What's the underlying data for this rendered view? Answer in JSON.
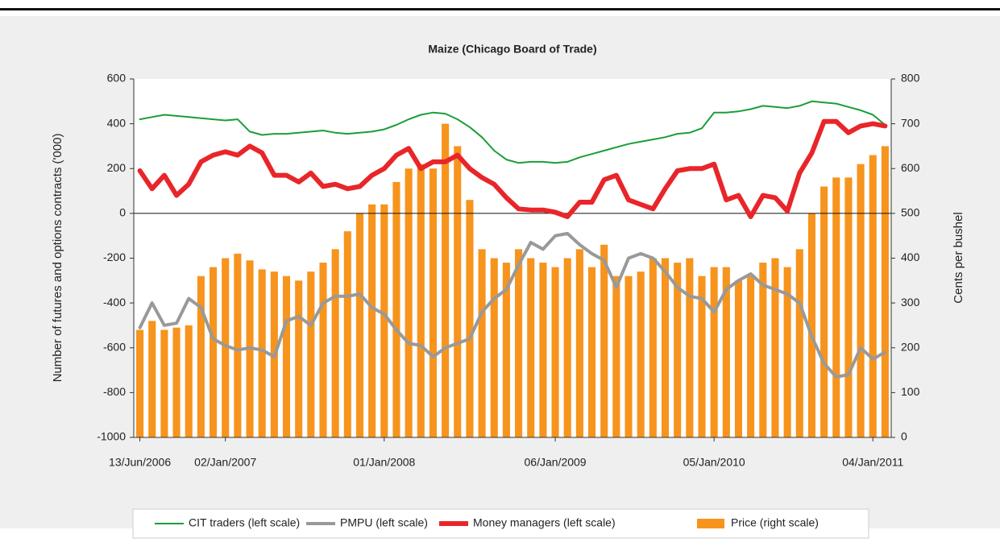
{
  "chart_data": {
    "type": "combo",
    "title": "Maize (Chicago Board of Trade)",
    "y_label": "Number of futures and options contracts ('000)",
    "y2_label": "Cents per bushel",
    "categories": [
      "13/Jun/2006",
      null,
      null,
      null,
      null,
      null,
      null,
      "02/Jan/2007",
      null,
      null,
      null,
      null,
      null,
      null,
      null,
      null,
      null,
      null,
      null,
      null,
      "01/Jan/2008",
      null,
      null,
      null,
      null,
      null,
      null,
      null,
      null,
      null,
      null,
      null,
      null,
      null,
      "06/Jan/2009",
      null,
      null,
      null,
      null,
      null,
      null,
      null,
      null,
      null,
      null,
      null,
      null,
      "05/Jan/2010",
      null,
      null,
      null,
      null,
      null,
      null,
      null,
      null,
      null,
      null,
      null,
      null,
      "04/Jan/2011",
      null
    ],
    "ylim": [
      -1000,
      600
    ],
    "yticks": [
      -1000,
      -800,
      -600,
      -400,
      -200,
      0,
      200,
      400,
      600
    ],
    "y2lim": [
      0,
      800
    ],
    "y2ticks": [
      0,
      100,
      200,
      300,
      400,
      500,
      600,
      700,
      800
    ],
    "legend": "bottom",
    "series": [
      {
        "name": "Price (right scale)",
        "type": "bar",
        "axis": "y2",
        "color": "#f7941d",
        "values": [
          240,
          260,
          240,
          245,
          250,
          360,
          380,
          400,
          410,
          395,
          375,
          370,
          360,
          350,
          370,
          390,
          420,
          460,
          500,
          520,
          520,
          570,
          600,
          610,
          600,
          700,
          650,
          530,
          420,
          400,
          390,
          420,
          400,
          390,
          380,
          400,
          420,
          380,
          430,
          360,
          360,
          370,
          400,
          400,
          390,
          400,
          360,
          380,
          380,
          350,
          360,
          390,
          400,
          380,
          420,
          500,
          560,
          580,
          580,
          610,
          630,
          650
        ]
      },
      {
        "name": "CIT traders (left scale)",
        "type": "line",
        "color": "#1a9e3a",
        "width": 2,
        "values": [
          420,
          430,
          440,
          435,
          430,
          425,
          420,
          415,
          420,
          365,
          350,
          355,
          355,
          360,
          365,
          370,
          360,
          355,
          360,
          365,
          375,
          395,
          420,
          440,
          450,
          445,
          420,
          385,
          340,
          280,
          240,
          225,
          230,
          230,
          225,
          230,
          250,
          265,
          280,
          295,
          310,
          320,
          330,
          340,
          355,
          360,
          380,
          450,
          450,
          455,
          465,
          480,
          475,
          470,
          480,
          500,
          495,
          490,
          475,
          460,
          440,
          395
        ]
      },
      {
        "name": "PMPU (left scale)",
        "type": "line",
        "color": "#999999",
        "width": 4,
        "values": [
          -510,
          -400,
          -500,
          -490,
          -380,
          -420,
          -560,
          -590,
          -610,
          -600,
          -610,
          -640,
          -480,
          -460,
          -500,
          -400,
          -370,
          -370,
          -360,
          -420,
          -450,
          -520,
          -580,
          -590,
          -640,
          -600,
          -580,
          -560,
          -440,
          -380,
          -340,
          -230,
          -130,
          -160,
          -100,
          -90,
          -140,
          -180,
          -210,
          -330,
          -200,
          -180,
          -200,
          -260,
          -330,
          -370,
          -380,
          -440,
          -340,
          -300,
          -270,
          -320,
          -340,
          -360,
          -400,
          -550,
          -670,
          -730,
          -720,
          -600,
          -650,
          -620
        ]
      },
      {
        "name": "Money managers (left scale)",
        "type": "line",
        "color": "#e8262a",
        "width": 6,
        "values": [
          190,
          110,
          170,
          80,
          130,
          230,
          260,
          275,
          260,
          300,
          270,
          170,
          170,
          140,
          180,
          120,
          130,
          110,
          120,
          170,
          200,
          260,
          290,
          200,
          230,
          230,
          260,
          200,
          160,
          130,
          70,
          20,
          15,
          15,
          5,
          -15,
          50,
          50,
          150,
          170,
          60,
          40,
          20,
          110,
          190,
          200,
          200,
          220,
          60,
          80,
          -15,
          80,
          70,
          10,
          180,
          270,
          410,
          410,
          360,
          390,
          400,
          390
        ]
      }
    ]
  }
}
